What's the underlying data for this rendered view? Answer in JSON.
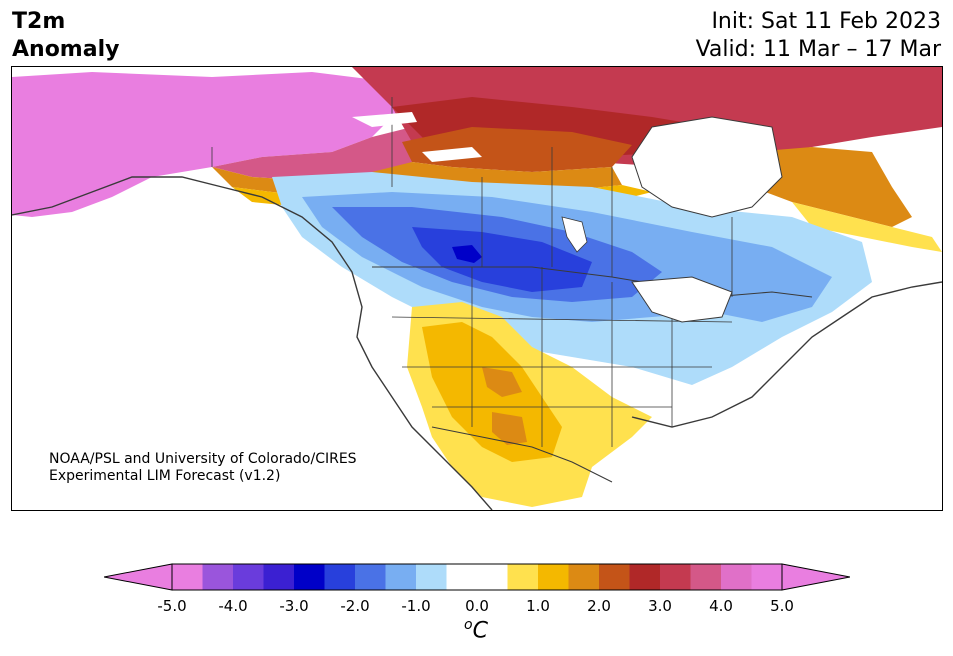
{
  "title": {
    "left_line1": "T2m",
    "left_line2": "Anomaly",
    "right_line1": "Init: Sat 11 Feb 2023",
    "right_line2": "Valid: 11 Mar – 17 Mar"
  },
  "credit": {
    "line1": "NOAA/PSL and University of Colorado/CIRES",
    "line2": "Experimental LIM Forecast (v1.2)"
  },
  "colorbar": {
    "unit_base": "C",
    "unit_super": "o",
    "ticks": [
      "-5.0",
      "-4.0",
      "-3.0",
      "-2.0",
      "-1.0",
      "0.0",
      "1.0",
      "2.0",
      "3.0",
      "4.0",
      "5.0"
    ],
    "colors": [
      "#e97ee0",
      "#9a55dc",
      "#6a3cdc",
      "#3b20d2",
      "#0000c8",
      "#2840dc",
      "#4a72e6",
      "#78aef2",
      "#aedcfa",
      "#ffffff",
      "#ffffff",
      "#ffe14e",
      "#f4b800",
      "#dc8a14",
      "#c45418",
      "#b02828",
      "#c43a50",
      "#d45888",
      "#e070c8",
      "#e97ee0"
    ]
  }
}
